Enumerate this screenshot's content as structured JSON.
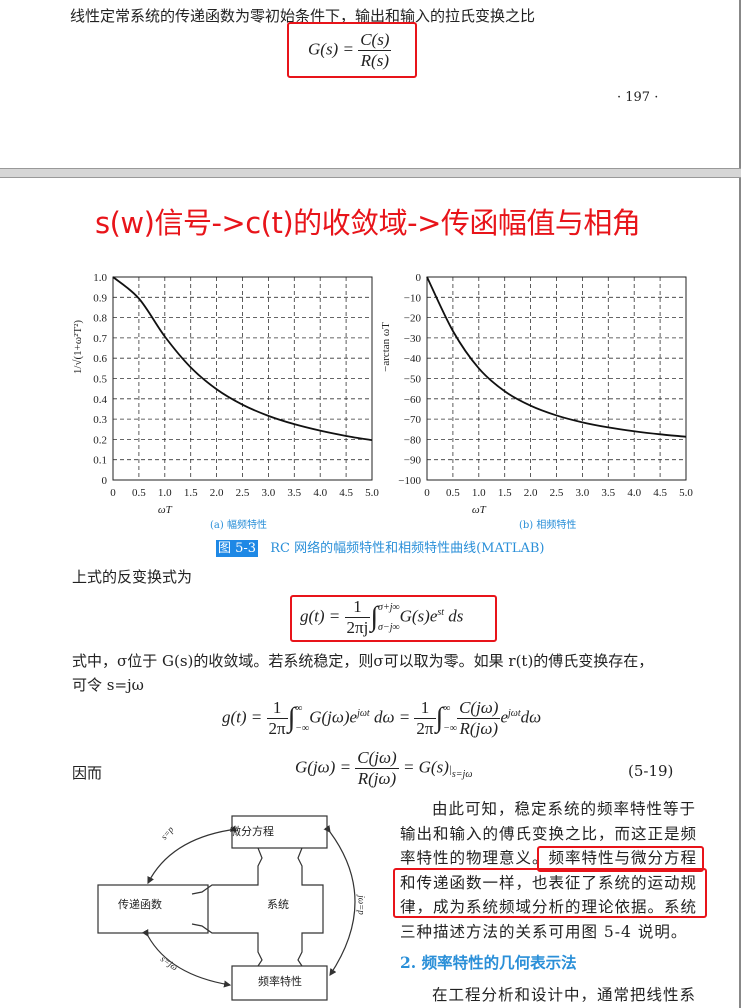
{
  "page1": {
    "intro_line": "线性定常系统的传递函数为零初始条件下，输出和输入的拉氏变换之比",
    "eq_gs": {
      "lhs": "G(s) =",
      "num": "C(s)",
      "den": "R(s)"
    },
    "page_number": "· 197 ·"
  },
  "annotation_title": "s(w)信号->c(t)的收敛域->传函幅值与相角",
  "annotation_color": "#e8141a",
  "chart_data": [
    {
      "type": "line",
      "title": "(a) 幅频特性",
      "xlabel": "ωT",
      "ylabel": "1/√(1+ω²T²)",
      "xlim": [
        0,
        5
      ],
      "ylim": [
        0,
        1
      ],
      "grid": true,
      "x_ticks": [
        "0",
        "0.5",
        "1.0",
        "1.5",
        "2.0",
        "2.5",
        "3.0",
        "3.5",
        "4.0",
        "4.5",
        "5.0"
      ],
      "y_ticks": [
        "0",
        "0.1",
        "0.2",
        "0.3",
        "0.4",
        "0.5",
        "0.6",
        "0.7",
        "0.8",
        "0.9",
        "1.0"
      ],
      "x": [
        0,
        0.5,
        1,
        1.5,
        2,
        2.5,
        3,
        3.5,
        4,
        4.5,
        5
      ],
      "y": [
        1,
        0.894,
        0.707,
        0.555,
        0.447,
        0.371,
        0.316,
        0.275,
        0.243,
        0.217,
        0.196
      ]
    },
    {
      "type": "line",
      "title": "(b) 相频特性",
      "xlabel": "ωT",
      "ylabel": "−arctan ωT",
      "xlim": [
        0,
        5
      ],
      "ylim": [
        -100,
        0
      ],
      "grid": true,
      "x_ticks": [
        "0",
        "0.5",
        "1.0",
        "1.5",
        "2.0",
        "2.5",
        "3.0",
        "3.5",
        "4.0",
        "4.5",
        "5.0"
      ],
      "y_ticks": [
        "0",
        "−10",
        "−20",
        "−30",
        "−40",
        "−50",
        "−60",
        "−70",
        "−80",
        "−90",
        "−100"
      ],
      "x": [
        0,
        0.5,
        1,
        1.5,
        2,
        2.5,
        3,
        3.5,
        4,
        4.5,
        5
      ],
      "y": [
        0,
        -26.6,
        -45,
        -56.3,
        -63.4,
        -68.2,
        -71.6,
        -74.1,
        -76,
        -77.5,
        -78.7
      ]
    }
  ],
  "figure_caption": {
    "label": "图 5-3",
    "text": "RC 网络的幅频特性和相频特性曲线(MATLAB)"
  },
  "body": {
    "inverse_intro": "上式的反变换式为",
    "eq_inverse": {
      "lhs": "g(t) =",
      "num": "1",
      "den": "2πj",
      "upper": "σ+j∞",
      "lower": "σ−j∞",
      "integrand": "G(s)e",
      "exp": "st",
      "tail": "ds"
    },
    "sigma_line": "式中，σ位于 G(s)的收敛域。若系统稳定，则σ可以取为零。如果 r(t)的傅氏变换存在，",
    "let_line": "可令 s=jω",
    "eq_fourier": {
      "lhs": "g(t) =",
      "num1": "1",
      "den1": "2π",
      "upper": "∞",
      "lower": "−∞",
      "mid": "G(jω)e",
      "exp": "jωt",
      "dw": "dω =",
      "num2": "1",
      "den2": "2π",
      "fnum": "C(jω)",
      "fden": "R(jω)",
      "tail_e": "e",
      "tail": "dω"
    },
    "thus": "因而",
    "eq_519": {
      "lhs": "G(jω) =",
      "num": "C(jω)",
      "den": "R(jω)",
      "rhs": "= G(s)",
      "sub": "s=jω",
      "number": "(5-19)"
    },
    "right_para": [
      "由此可知，稳定系统的频率特性等于",
      "输出和输入的傅氏变换之比，而这正是频",
      "率特性的物理意义。频率特性与微分方程",
      "和传递函数一样，也表征了系统的运动规",
      "律，成为系统频域分析的理论依据。系统",
      "三种描述方法的关系可用图 5-4 说明。"
    ],
    "section_heading": "2. 频率特性的几何表示法",
    "last_line": "在工程分析和设计中，通常把线性系"
  },
  "diagram": {
    "center": "系统",
    "top": "微分方程",
    "left": "传递函数",
    "bottom": "频率特性",
    "arrow_top_left": "s=p",
    "arrow_bottom_left": "s=jω",
    "arrow_right": "jω=p"
  }
}
